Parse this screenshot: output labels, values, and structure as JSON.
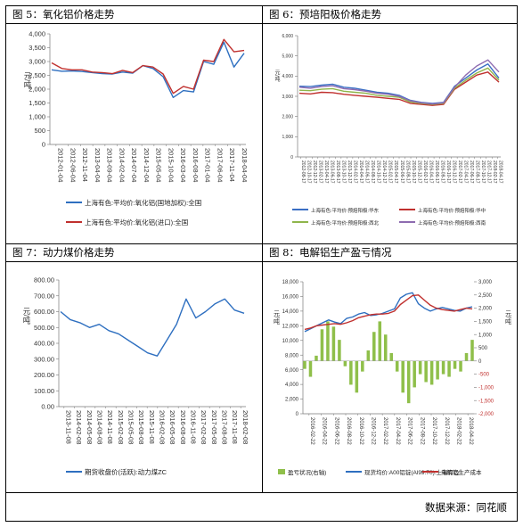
{
  "panels": [
    {
      "title": "图 5：氧化铝价格走势"
    },
    {
      "title": "图 6：预培阳极价格走势"
    },
    {
      "title": "图 7：动力煤价格走势"
    },
    {
      "title": "图 8：电解铝生产盈亏情况"
    }
  ],
  "source": "数据来源：同花顺",
  "chart_data": [
    {
      "type": "line",
      "ylabel": "元/吨",
      "ylim": [
        0,
        4000
      ],
      "yticks": [
        "0",
        "500",
        "1,000",
        "1,500",
        "2,000",
        "2,500",
        "3,000",
        "3,500",
        "4,000"
      ],
      "xticks": [
        "2012-01-04",
        "2012-06-04",
        "2012-11-04",
        "2013-04-04",
        "2013-09-04",
        "2014-02-04",
        "2014-07-04",
        "2014-12-04",
        "2015-05-04",
        "2015-10-04",
        "2016-03-04",
        "2016-08-04",
        "2017-01-04",
        "2017-06-04",
        "2017-11-04",
        "2018-04-04"
      ],
      "series": [
        {
          "name": "上海有色:平均价:氧化铝(国地加权):全国",
          "color": "#2e6fc0",
          "values": [
            2700,
            2650,
            2660,
            2640,
            2600,
            2560,
            2550,
            2620,
            2580,
            2850,
            2750,
            2450,
            1700,
            1950,
            1900,
            3000,
            2900,
            3700,
            2800,
            3300
          ]
        },
        {
          "name": "上海有色:平均价:氧化铝(进口):全国",
          "color": "#c0302e",
          "values": [
            2950,
            2750,
            2700,
            2700,
            2620,
            2600,
            2560,
            2680,
            2600,
            2850,
            2800,
            2550,
            1850,
            2100,
            2000,
            3050,
            3000,
            3800,
            3350,
            3400
          ]
        }
      ]
    },
    {
      "type": "line",
      "ylabel": "元/吨",
      "ylim": [
        0,
        6000
      ],
      "yticks": [
        "0",
        "1,000",
        "2,000",
        "3,000",
        "4,000",
        "5,000",
        "6,000"
      ],
      "xticks": [
        "2012-08-17",
        "2012-10-17",
        "2012-12-17",
        "2013-02-17",
        "2013-04-17",
        "2013-06-17",
        "2013-08-17",
        "2013-10-17",
        "2013-12-17",
        "2014-02-17",
        "2014-04-17",
        "2014-06-17",
        "2014-08-17",
        "2014-10-17",
        "2014-12-17",
        "2015-02-17",
        "2015-04-17",
        "2015-06-17",
        "2015-08-17",
        "2015-10-17",
        "2015-12-17",
        "2016-02-17",
        "2016-04-17",
        "2016-06-17",
        "2016-08-17",
        "2016-10-17",
        "2016-12-17",
        "2017-02-17",
        "2017-04-17",
        "2017-06-17",
        "2017-08-17",
        "2017-10-17",
        "2017-12-17",
        "2018-02-17",
        "2018-04-17"
      ],
      "series": [
        {
          "name": "上海有色:平均价:预焙阳极:华东",
          "color": "#3a6fc4",
          "values": [
            3500,
            3480,
            3550,
            3600,
            3450,
            3400,
            3300,
            3200,
            3150,
            3050,
            2800,
            2700,
            2650,
            2700,
            3500,
            3900,
            4300,
            4600,
            3900
          ]
        },
        {
          "name": "上海有色:平均价:预焙阳极:华中",
          "color": "#c0302e",
          "values": [
            3150,
            3120,
            3200,
            3180,
            3100,
            3050,
            3000,
            2950,
            2900,
            2850,
            2650,
            2600,
            2550,
            2600,
            3350,
            3700,
            4050,
            4200,
            3700
          ]
        },
        {
          "name": "上海有色:平均价:预焙阳极:西北",
          "color": "#8fb54b",
          "values": [
            3300,
            3280,
            3350,
            3380,
            3250,
            3200,
            3150,
            3050,
            3000,
            2950,
            2720,
            2650,
            2600,
            2650,
            3400,
            3800,
            4150,
            4400,
            3800
          ]
        },
        {
          "name": "上海有色:平均价:预焙阳极:西南",
          "color": "#8e6bb0",
          "values": [
            3450,
            3400,
            3480,
            3520,
            3380,
            3330,
            3250,
            3150,
            3100,
            3000,
            2780,
            2680,
            2620,
            2680,
            3450,
            4050,
            4500,
            4800,
            4200
          ]
        }
      ]
    },
    {
      "type": "line",
      "ylabel": "元/吨",
      "ylim": [
        0,
        800
      ],
      "yticks": [
        "0.00",
        "100.00",
        "200.00",
        "300.00",
        "400.00",
        "500.00",
        "600.00",
        "700.00",
        "800.00"
      ],
      "xticks": [
        "2013-11-08",
        "2014-02-08",
        "2014-05-08",
        "2014-08-08",
        "2014-11-08",
        "2015-02-08",
        "2015-05-08",
        "2015-08-08",
        "2015-11-08",
        "2016-02-08",
        "2016-05-08",
        "2016-08-08",
        "2016-11-08",
        "2017-02-08",
        "2017-05-08",
        "2017-08-08",
        "2017-11-08",
        "2018-02-08"
      ],
      "series": [
        {
          "name": "期货收盘价(活跃):动力煤ZC",
          "color": "#2e6fc0",
          "values": [
            600,
            550,
            530,
            500,
            520,
            480,
            460,
            420,
            380,
            340,
            320,
            420,
            520,
            680,
            560,
            600,
            650,
            680,
            610,
            590
          ]
        }
      ]
    },
    {
      "type": "bar+line",
      "ylabel": "元/吨",
      "ylim": [
        0,
        18000
      ],
      "yticks": [
        "0",
        "2,000",
        "4,000",
        "6,000",
        "8,000",
        "10,000",
        "12,000",
        "14,000",
        "16,000",
        "18,000"
      ],
      "y2lim": [
        -2000,
        3000
      ],
      "y2ticks": [
        "-2,000",
        "-1,500",
        "-1,000",
        "-500",
        "0",
        "500",
        "1,000",
        "1,500",
        "2,000",
        "2,500",
        "3,000"
      ],
      "xticks": [
        "2016-02-22",
        "2016-04-22",
        "2016-06-22",
        "2016-08-22",
        "2016-10-22",
        "2016-12-22",
        "2017-02-22",
        "2017-04-22",
        "2017-06-22",
        "2017-08-22",
        "2017-10-22",
        "2017-12-22",
        "2018-02-22",
        "2018-04-22"
      ],
      "series": [
        {
          "name": "盈亏状况(右轴)",
          "color": "#8fbf4a",
          "axis": "right",
          "values": [
            -300,
            -600,
            200,
            1200,
            1500,
            1300,
            800,
            -200,
            -900,
            -1200,
            -400,
            400,
            1100,
            1500,
            1000,
            300,
            -400,
            -1200,
            -1600,
            -1000,
            -500,
            -800,
            -900,
            -700,
            -500,
            -600,
            -300,
            -400,
            300,
            800
          ]
        },
        {
          "name": "现货均价:A00铝锭(Al99.70):上海有色",
          "color": "#2e6fc0",
          "axis": "left",
          "values": [
            11200,
            11600,
            12000,
            12400,
            12800,
            12500,
            12300,
            13000,
            13200,
            13600,
            13800,
            13400,
            13500,
            13700,
            14000,
            14300,
            15800,
            16300,
            16500,
            15000,
            14400,
            14000,
            14300,
            14500,
            14300,
            14100,
            14000,
            14400,
            14600
          ]
        },
        {
          "name": "电解铝生产成本",
          "color": "#c0302e",
          "axis": "left",
          "values": [
            11500,
            11700,
            12000,
            12100,
            12200,
            12300,
            12200,
            12400,
            12700,
            13100,
            13300,
            13500,
            13600,
            13600,
            13700,
            14000,
            14900,
            15500,
            16100,
            16200,
            15500,
            14800,
            14400,
            14200,
            14100,
            14000,
            14200,
            14400,
            14300
          ]
        }
      ]
    }
  ]
}
